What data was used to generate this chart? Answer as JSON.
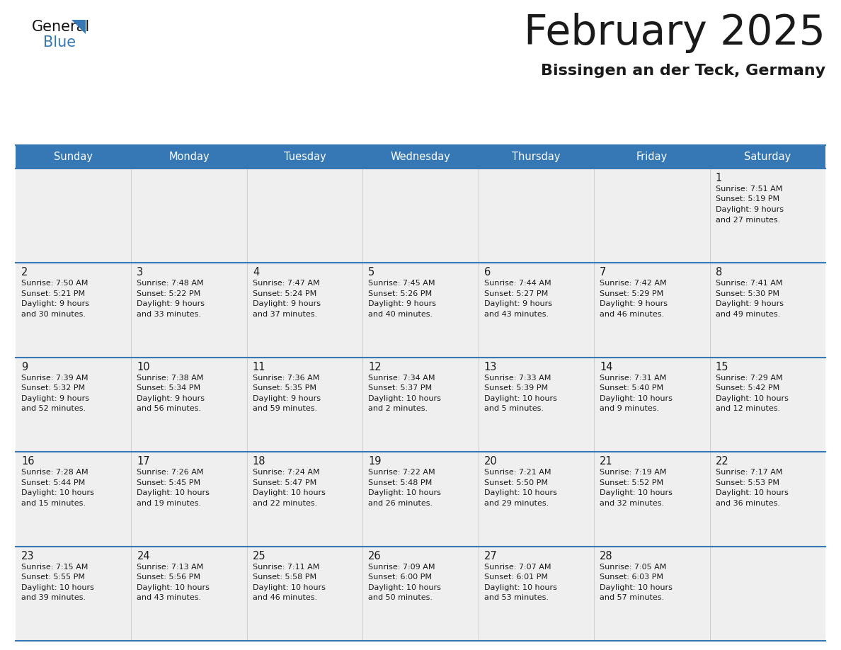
{
  "title": "February 2025",
  "subtitle": "Bissingen an der Teck, Germany",
  "header_color": "#3578b5",
  "header_text_color": "#ffffff",
  "days_of_week": [
    "Sunday",
    "Monday",
    "Tuesday",
    "Wednesday",
    "Thursday",
    "Friday",
    "Saturday"
  ],
  "title_color": "#1a1a1a",
  "subtitle_color": "#1a1a1a",
  "cell_bg_color": "#efefef",
  "border_color": "#3578b5",
  "col_border_color": "#cccccc",
  "day_num_color": "#1a1a1a",
  "info_color": "#1a1a1a",
  "calendar": [
    [
      null,
      null,
      null,
      null,
      null,
      null,
      {
        "day": 1,
        "sunrise": "7:51 AM",
        "sunset": "5:19 PM",
        "daylight": "9 hours and 27 minutes."
      }
    ],
    [
      {
        "day": 2,
        "sunrise": "7:50 AM",
        "sunset": "5:21 PM",
        "daylight": "9 hours and 30 minutes."
      },
      {
        "day": 3,
        "sunrise": "7:48 AM",
        "sunset": "5:22 PM",
        "daylight": "9 hours and 33 minutes."
      },
      {
        "day": 4,
        "sunrise": "7:47 AM",
        "sunset": "5:24 PM",
        "daylight": "9 hours and 37 minutes."
      },
      {
        "day": 5,
        "sunrise": "7:45 AM",
        "sunset": "5:26 PM",
        "daylight": "9 hours and 40 minutes."
      },
      {
        "day": 6,
        "sunrise": "7:44 AM",
        "sunset": "5:27 PM",
        "daylight": "9 hours and 43 minutes."
      },
      {
        "day": 7,
        "sunrise": "7:42 AM",
        "sunset": "5:29 PM",
        "daylight": "9 hours and 46 minutes."
      },
      {
        "day": 8,
        "sunrise": "7:41 AM",
        "sunset": "5:30 PM",
        "daylight": "9 hours and 49 minutes."
      }
    ],
    [
      {
        "day": 9,
        "sunrise": "7:39 AM",
        "sunset": "5:32 PM",
        "daylight": "9 hours and 52 minutes."
      },
      {
        "day": 10,
        "sunrise": "7:38 AM",
        "sunset": "5:34 PM",
        "daylight": "9 hours and 56 minutes."
      },
      {
        "day": 11,
        "sunrise": "7:36 AM",
        "sunset": "5:35 PM",
        "daylight": "9 hours and 59 minutes."
      },
      {
        "day": 12,
        "sunrise": "7:34 AM",
        "sunset": "5:37 PM",
        "daylight": "10 hours and 2 minutes."
      },
      {
        "day": 13,
        "sunrise": "7:33 AM",
        "sunset": "5:39 PM",
        "daylight": "10 hours and 5 minutes."
      },
      {
        "day": 14,
        "sunrise": "7:31 AM",
        "sunset": "5:40 PM",
        "daylight": "10 hours and 9 minutes."
      },
      {
        "day": 15,
        "sunrise": "7:29 AM",
        "sunset": "5:42 PM",
        "daylight": "10 hours and 12 minutes."
      }
    ],
    [
      {
        "day": 16,
        "sunrise": "7:28 AM",
        "sunset": "5:44 PM",
        "daylight": "10 hours and 15 minutes."
      },
      {
        "day": 17,
        "sunrise": "7:26 AM",
        "sunset": "5:45 PM",
        "daylight": "10 hours and 19 minutes."
      },
      {
        "day": 18,
        "sunrise": "7:24 AM",
        "sunset": "5:47 PM",
        "daylight": "10 hours and 22 minutes."
      },
      {
        "day": 19,
        "sunrise": "7:22 AM",
        "sunset": "5:48 PM",
        "daylight": "10 hours and 26 minutes."
      },
      {
        "day": 20,
        "sunrise": "7:21 AM",
        "sunset": "5:50 PM",
        "daylight": "10 hours and 29 minutes."
      },
      {
        "day": 21,
        "sunrise": "7:19 AM",
        "sunset": "5:52 PM",
        "daylight": "10 hours and 32 minutes."
      },
      {
        "day": 22,
        "sunrise": "7:17 AM",
        "sunset": "5:53 PM",
        "daylight": "10 hours and 36 minutes."
      }
    ],
    [
      {
        "day": 23,
        "sunrise": "7:15 AM",
        "sunset": "5:55 PM",
        "daylight": "10 hours and 39 minutes."
      },
      {
        "day": 24,
        "sunrise": "7:13 AM",
        "sunset": "5:56 PM",
        "daylight": "10 hours and 43 minutes."
      },
      {
        "day": 25,
        "sunrise": "7:11 AM",
        "sunset": "5:58 PM",
        "daylight": "10 hours and 46 minutes."
      },
      {
        "day": 26,
        "sunrise": "7:09 AM",
        "sunset": "6:00 PM",
        "daylight": "10 hours and 50 minutes."
      },
      {
        "day": 27,
        "sunrise": "7:07 AM",
        "sunset": "6:01 PM",
        "daylight": "10 hours and 53 minutes."
      },
      {
        "day": 28,
        "sunrise": "7:05 AM",
        "sunset": "6:03 PM",
        "daylight": "10 hours and 57 minutes."
      },
      null
    ]
  ]
}
